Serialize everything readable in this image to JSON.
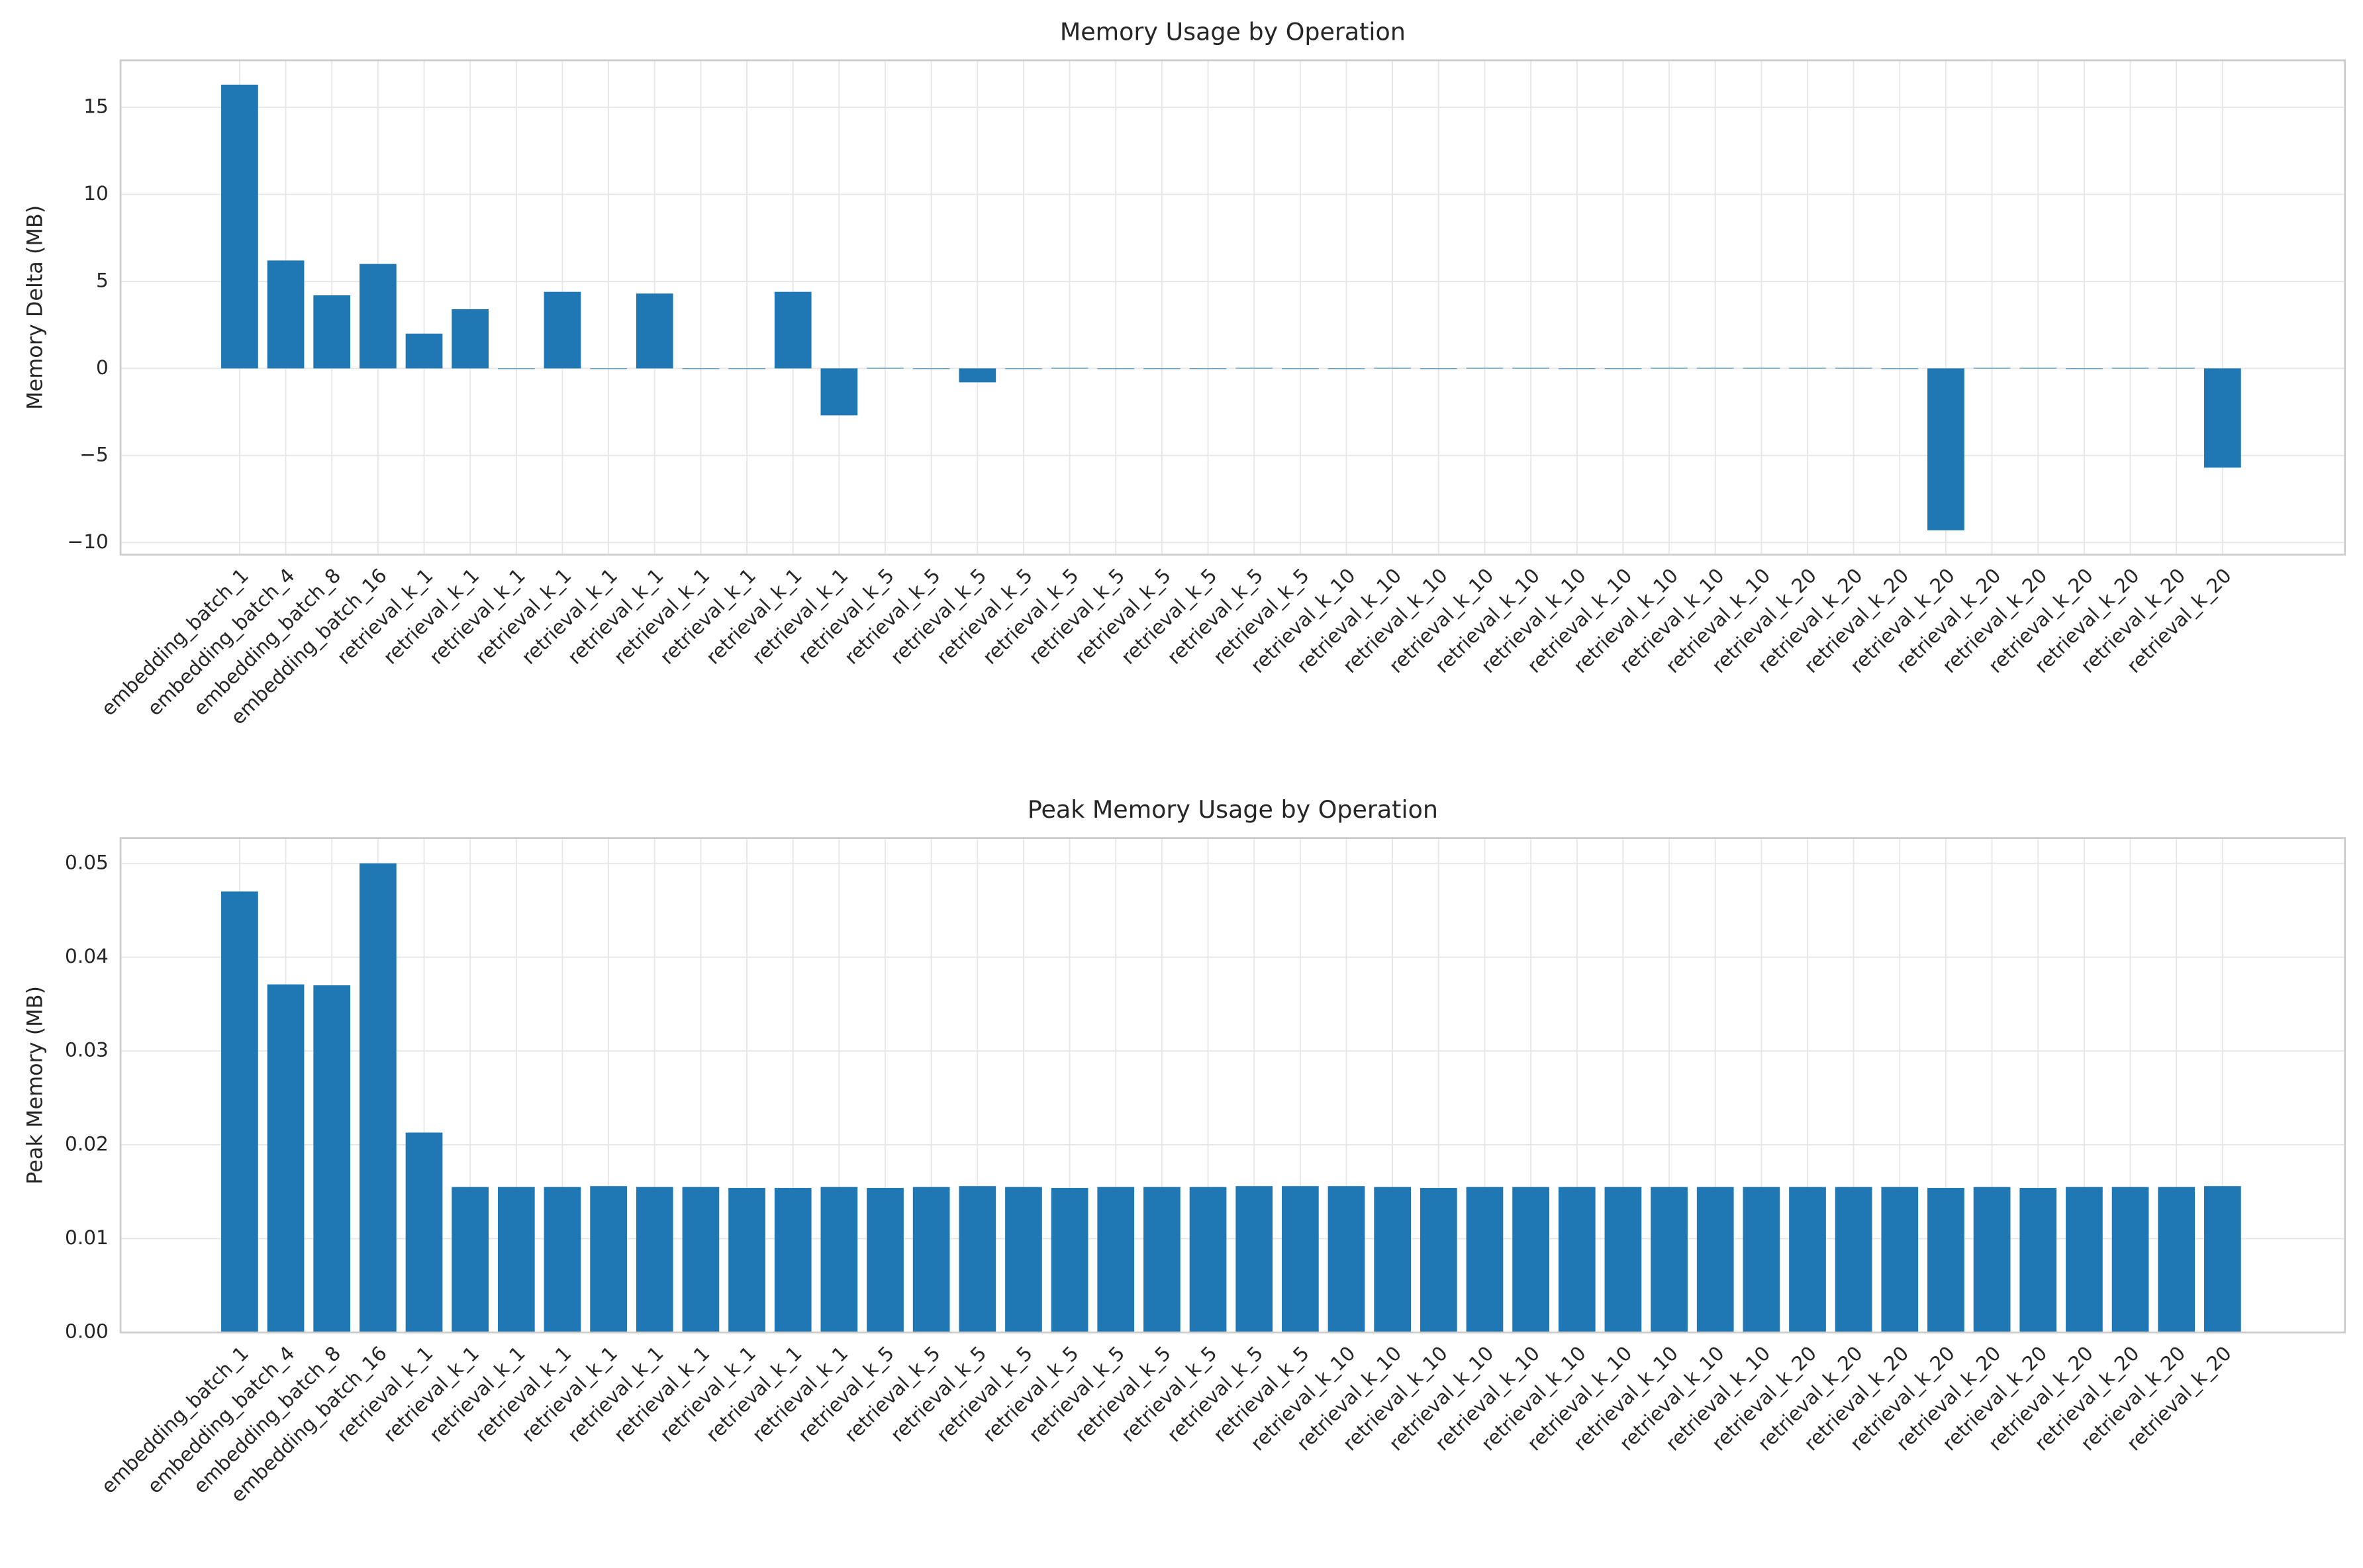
{
  "chart_data": [
    {
      "type": "bar",
      "title": "Memory Usage by Operation",
      "ylabel": "Memory Delta (MB)",
      "color": "#1f77b4",
      "grid": true,
      "categories": [
        "embedding_batch_1",
        "embedding_batch_4",
        "embedding_batch_8",
        "embedding_batch_16",
        "retrieval_k_1",
        "retrieval_k_1",
        "retrieval_k_1",
        "retrieval_k_1",
        "retrieval_k_1",
        "retrieval_k_1",
        "retrieval_k_1",
        "retrieval_k_1",
        "retrieval_k_1",
        "retrieval_k_1",
        "retrieval_k_5",
        "retrieval_k_5",
        "retrieval_k_5",
        "retrieval_k_5",
        "retrieval_k_5",
        "retrieval_k_5",
        "retrieval_k_5",
        "retrieval_k_5",
        "retrieval_k_5",
        "retrieval_k_5",
        "retrieval_k_10",
        "retrieval_k_10",
        "retrieval_k_10",
        "retrieval_k_10",
        "retrieval_k_10",
        "retrieval_k_10",
        "retrieval_k_10",
        "retrieval_k_10",
        "retrieval_k_10",
        "retrieval_k_10",
        "retrieval_k_20",
        "retrieval_k_20",
        "retrieval_k_20",
        "retrieval_k_20",
        "retrieval_k_20",
        "retrieval_k_20",
        "retrieval_k_20",
        "retrieval_k_20",
        "retrieval_k_20",
        "retrieval_k_20"
      ],
      "values": [
        16.3,
        6.2,
        4.2,
        6.0,
        2.0,
        3.4,
        0,
        4.4,
        0,
        4.3,
        0,
        0,
        4.4,
        -2.7,
        0.03,
        0,
        -0.8,
        0,
        0.03,
        0,
        0,
        0,
        0.03,
        0,
        0,
        0.03,
        0,
        0.03,
        0.03,
        0,
        0,
        0.03,
        0.03,
        0.03,
        0.03,
        0.03,
        0,
        -9.3,
        0.03,
        0.03,
        0,
        0.03,
        0.03,
        -5.7
      ],
      "ylim": [
        -10.7,
        17.7
      ],
      "yticks": [
        {
          "value": -10,
          "label": "−10"
        },
        {
          "value": -5,
          "label": "−5"
        },
        0,
        5,
        10,
        15
      ]
    },
    {
      "type": "bar",
      "title": "Peak Memory Usage by Operation",
      "ylabel": "Peak Memory (MB)",
      "color": "#1f77b4",
      "grid": true,
      "categories": [
        "embedding_batch_1",
        "embedding_batch_4",
        "embedding_batch_8",
        "embedding_batch_16",
        "retrieval_k_1",
        "retrieval_k_1",
        "retrieval_k_1",
        "retrieval_k_1",
        "retrieval_k_1",
        "retrieval_k_1",
        "retrieval_k_1",
        "retrieval_k_1",
        "retrieval_k_1",
        "retrieval_k_1",
        "retrieval_k_5",
        "retrieval_k_5",
        "retrieval_k_5",
        "retrieval_k_5",
        "retrieval_k_5",
        "retrieval_k_5",
        "retrieval_k_5",
        "retrieval_k_5",
        "retrieval_k_5",
        "retrieval_k_5",
        "retrieval_k_10",
        "retrieval_k_10",
        "retrieval_k_10",
        "retrieval_k_10",
        "retrieval_k_10",
        "retrieval_k_10",
        "retrieval_k_10",
        "retrieval_k_10",
        "retrieval_k_10",
        "retrieval_k_10",
        "retrieval_k_20",
        "retrieval_k_20",
        "retrieval_k_20",
        "retrieval_k_20",
        "retrieval_k_20",
        "retrieval_k_20",
        "retrieval_k_20",
        "retrieval_k_20",
        "retrieval_k_20",
        "retrieval_k_20"
      ],
      "values": [
        0.047,
        0.0371,
        0.037,
        0.05,
        0.0213,
        0.0155,
        0.0155,
        0.0155,
        0.0156,
        0.0155,
        0.0155,
        0.0154,
        0.0154,
        0.0155,
        0.0154,
        0.0155,
        0.0156,
        0.0155,
        0.0154,
        0.0155,
        0.0155,
        0.0155,
        0.0156,
        0.0156,
        0.0156,
        0.0155,
        0.0154,
        0.0155,
        0.0155,
        0.0155,
        0.0155,
        0.0155,
        0.0155,
        0.0155,
        0.0155,
        0.0155,
        0.0155,
        0.0154,
        0.0155,
        0.0154,
        0.0155,
        0.0155,
        0.0155,
        0.0156
      ],
      "ylim": [
        0,
        0.0527
      ],
      "yticks": [
        {
          "value": 0,
          "label": "0.00"
        },
        {
          "value": 0.01,
          "label": "0.01"
        },
        {
          "value": 0.02,
          "label": "0.02"
        },
        {
          "value": 0.03,
          "label": "0.03"
        },
        {
          "value": 0.04,
          "label": "0.04"
        },
        {
          "value": 0.05,
          "label": "0.05"
        }
      ]
    }
  ]
}
